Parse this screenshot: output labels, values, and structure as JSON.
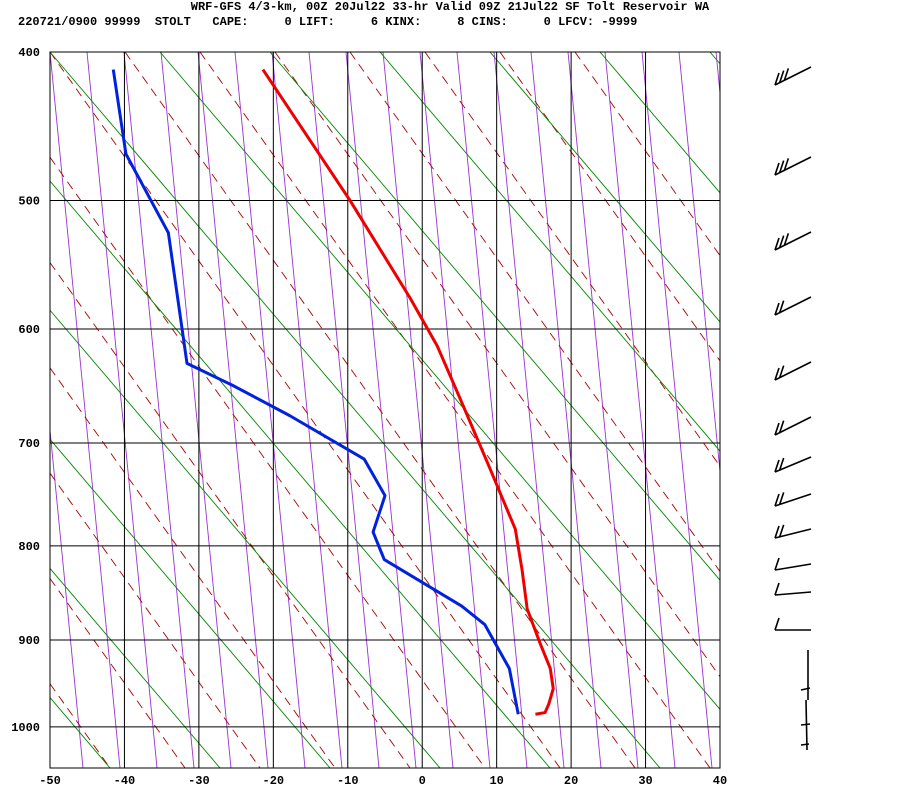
{
  "chart_data": {
    "type": "skewt",
    "title": "WRF-GFS 4/3-km, 00Z 20Jul22 33-hr Valid 09Z 21Jul22 SF Tolt Reservoir WA",
    "subtitle": "220721/0900 99999  STOLT   CAPE:     0 LIFT:     6 KINX:     8 CINS:     0 LFCV: -9999",
    "xlim": [
      -50,
      40
    ],
    "xticks": [
      -50,
      -40,
      -30,
      -20,
      -10,
      0,
      10,
      20,
      30,
      40
    ],
    "ylim": [
      400,
      1050
    ],
    "yticks": [
      400,
      500,
      600,
      700,
      800,
      900,
      1000
    ],
    "y_scale": "exner",
    "grid": true,
    "series": [
      {
        "color": "#ee0000",
        "x": [
          -21.4,
          -9.7,
          -1.6,
          2.0,
          5.3,
          9.1,
          12.5,
          13.4,
          14.1,
          15.8,
          17.2,
          17.6,
          17.0,
          16.5,
          15.2
        ],
        "y": [
          411,
          500,
          575,
          614,
          663,
          724,
          783,
          824,
          866,
          903,
          932,
          955,
          973,
          983,
          985
        ]
      },
      {
        "color": "#0022dd",
        "x": [
          -41.5,
          -39.8,
          -34.1,
          -31.6,
          -25.5,
          -17.8,
          -7.8,
          -5.0,
          -6.6,
          -5.1,
          5.3,
          8.4,
          11.7,
          12.9
        ],
        "y": [
          411,
          467,
          524,
          629,
          648,
          675,
          715,
          750,
          786,
          814,
          863,
          883,
          932,
          985
        ]
      }
    ]
  }
}
